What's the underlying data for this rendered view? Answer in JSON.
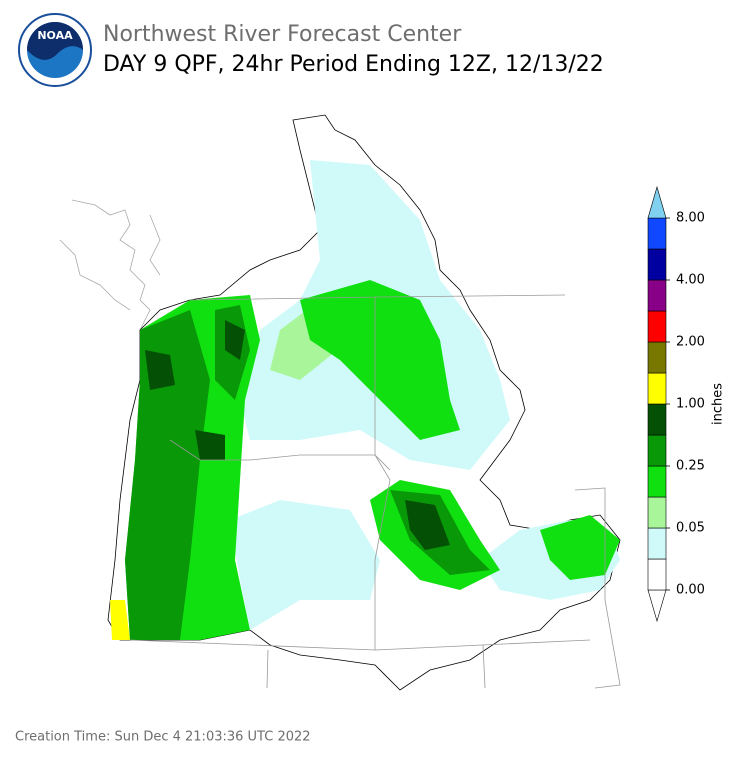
{
  "header": {
    "title": "Northwest River Forecast Center",
    "subtitle": "DAY 9 QPF, 24hr Period Ending 12Z, 12/13/22"
  },
  "logo": {
    "text": "NOAA"
  },
  "colorbar": {
    "label": "inches",
    "ticks": [
      "0.00",
      "0.05",
      "0.25",
      "1.00",
      "2.00",
      "4.00",
      "8.00"
    ]
  },
  "footer": {
    "creation_time": "Creation Time: Sun Dec 4 21:03:36 UTC 2022"
  }
}
